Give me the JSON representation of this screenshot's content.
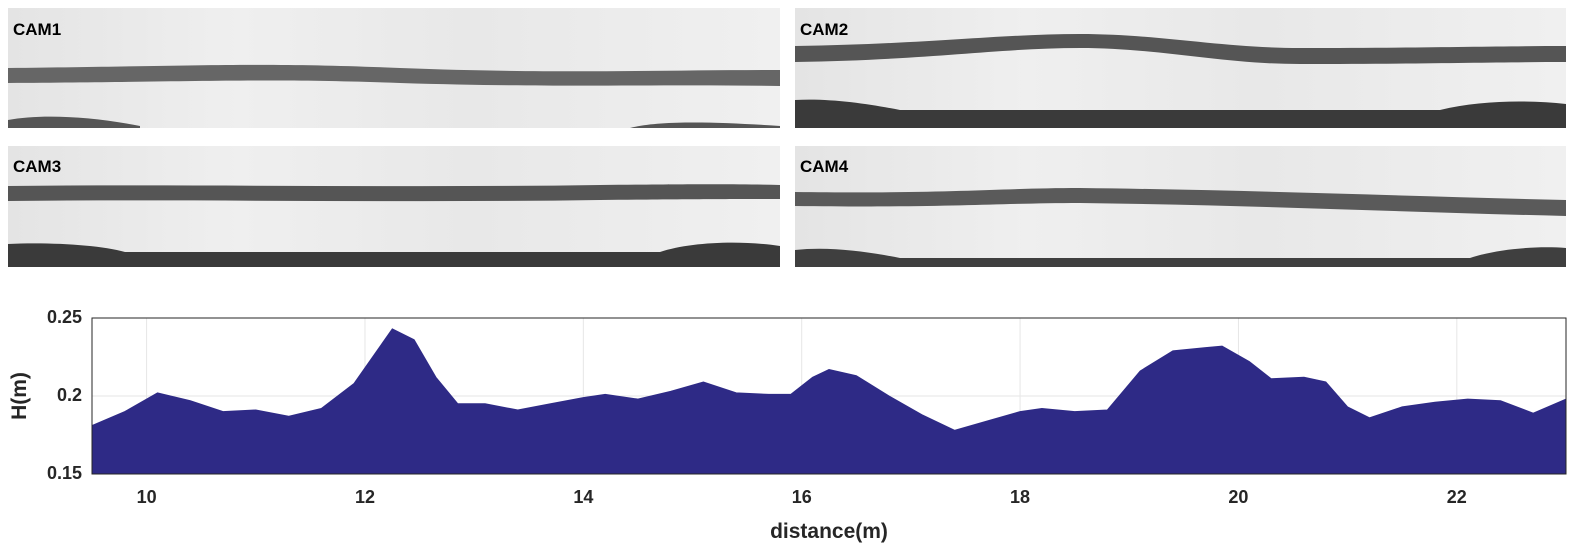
{
  "camera_panels": [
    {
      "label": "CAM1"
    },
    {
      "label": "CAM2"
    },
    {
      "label": "CAM3"
    },
    {
      "label": "CAM4"
    }
  ],
  "chart_data": {
    "type": "area",
    "xlabel": "distance(m)",
    "ylabel": "H(m)",
    "color": "#2e2a86",
    "x": [
      9.5,
      9.8,
      10.1,
      10.4,
      10.7,
      11.0,
      11.3,
      11.6,
      11.9,
      12.1,
      12.25,
      12.45,
      12.65,
      12.85,
      13.1,
      13.4,
      13.7,
      14.0,
      14.2,
      14.5,
      14.8,
      15.1,
      15.4,
      15.7,
      15.9,
      16.1,
      16.25,
      16.5,
      16.8,
      17.1,
      17.4,
      17.7,
      18.0,
      18.2,
      18.5,
      18.8,
      19.1,
      19.4,
      19.7,
      19.85,
      20.1,
      20.3,
      20.6,
      20.8,
      21.0,
      21.2,
      21.5,
      21.8,
      22.1,
      22.4,
      22.7,
      23.0
    ],
    "y": [
      0.181,
      0.19,
      0.202,
      0.197,
      0.19,
      0.191,
      0.187,
      0.192,
      0.208,
      0.228,
      0.243,
      0.236,
      0.212,
      0.195,
      0.195,
      0.191,
      0.195,
      0.199,
      0.201,
      0.198,
      0.203,
      0.209,
      0.202,
      0.201,
      0.201,
      0.212,
      0.217,
      0.213,
      0.2,
      0.188,
      0.178,
      0.184,
      0.19,
      0.192,
      0.19,
      0.191,
      0.216,
      0.229,
      0.231,
      0.232,
      0.222,
      0.211,
      0.212,
      0.209,
      0.193,
      0.186,
      0.193,
      0.196,
      0.198,
      0.197,
      0.189,
      0.198
    ],
    "xlim": [
      9.5,
      23
    ],
    "ylim": [
      0.15,
      0.25
    ],
    "xticks": [
      10,
      12,
      14,
      16,
      18,
      20,
      22
    ],
    "yticks": [
      0.15,
      0.2,
      0.25
    ],
    "grid": true
  }
}
